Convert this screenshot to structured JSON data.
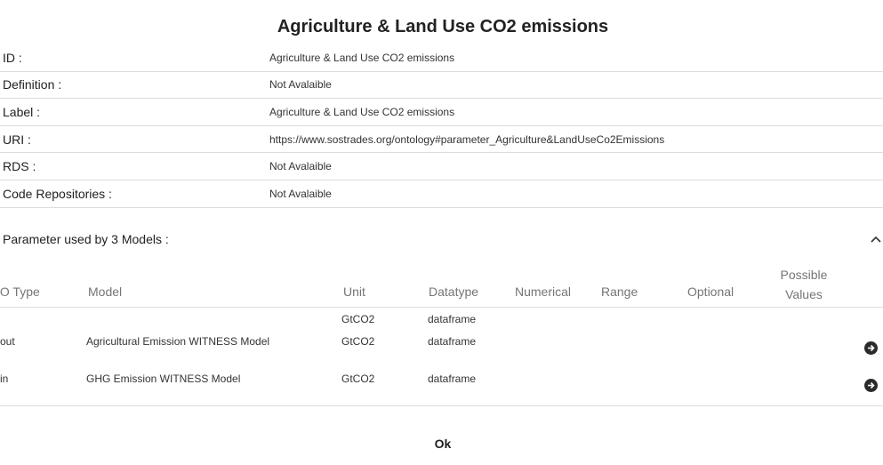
{
  "dialog": {
    "title": "Agriculture & Land Use CO2 emissions",
    "ok_label": "Ok"
  },
  "info": [
    {
      "label": "ID :",
      "value": "Agriculture & Land Use CO2 emissions"
    },
    {
      "label": "Definition :",
      "value": "Not Avalaible"
    },
    {
      "label": "Label :",
      "value": "Agriculture & Land Use CO2 emissions"
    },
    {
      "label": "URI :",
      "value": "https://www.sostrades.org/ontology#parameter_Agriculture&LandUseCo2Emissions"
    },
    {
      "label": "RDS :",
      "value": "Not Avalaible"
    },
    {
      "label": "Code Repositories :",
      "value": "Not Avalaible"
    }
  ],
  "models": {
    "title": "Parameter used by 3 Models :",
    "columns": {
      "io_type": "IO Type",
      "model": "Model",
      "unit": "Unit",
      "datatype": "Datatype",
      "numerical": "Numerical",
      "range": "Range",
      "optional": "Optional",
      "possible_line1": "Possible",
      "possible_line2": "Values"
    },
    "rows": [
      {
        "io_type": "",
        "model": "",
        "unit": "GtCO2",
        "datatype": "dataframe",
        "numerical": "",
        "range": "",
        "optional": "",
        "link": false
      },
      {
        "io_type": "out",
        "model": "Agricultural Emission WITNESS Model",
        "unit": "GtCO2",
        "datatype": "dataframe",
        "numerical": "",
        "range": "",
        "optional": "",
        "link": true
      },
      {
        "io_type": "in",
        "model": "GHG Emission WITNESS Model",
        "unit": "GtCO2",
        "datatype": "dataframe",
        "numerical": "",
        "range": "",
        "optional": "",
        "link": true
      }
    ]
  },
  "icons": {
    "collapse": "chevron-up-icon",
    "open_model": "arrow-right-circle-icon"
  }
}
